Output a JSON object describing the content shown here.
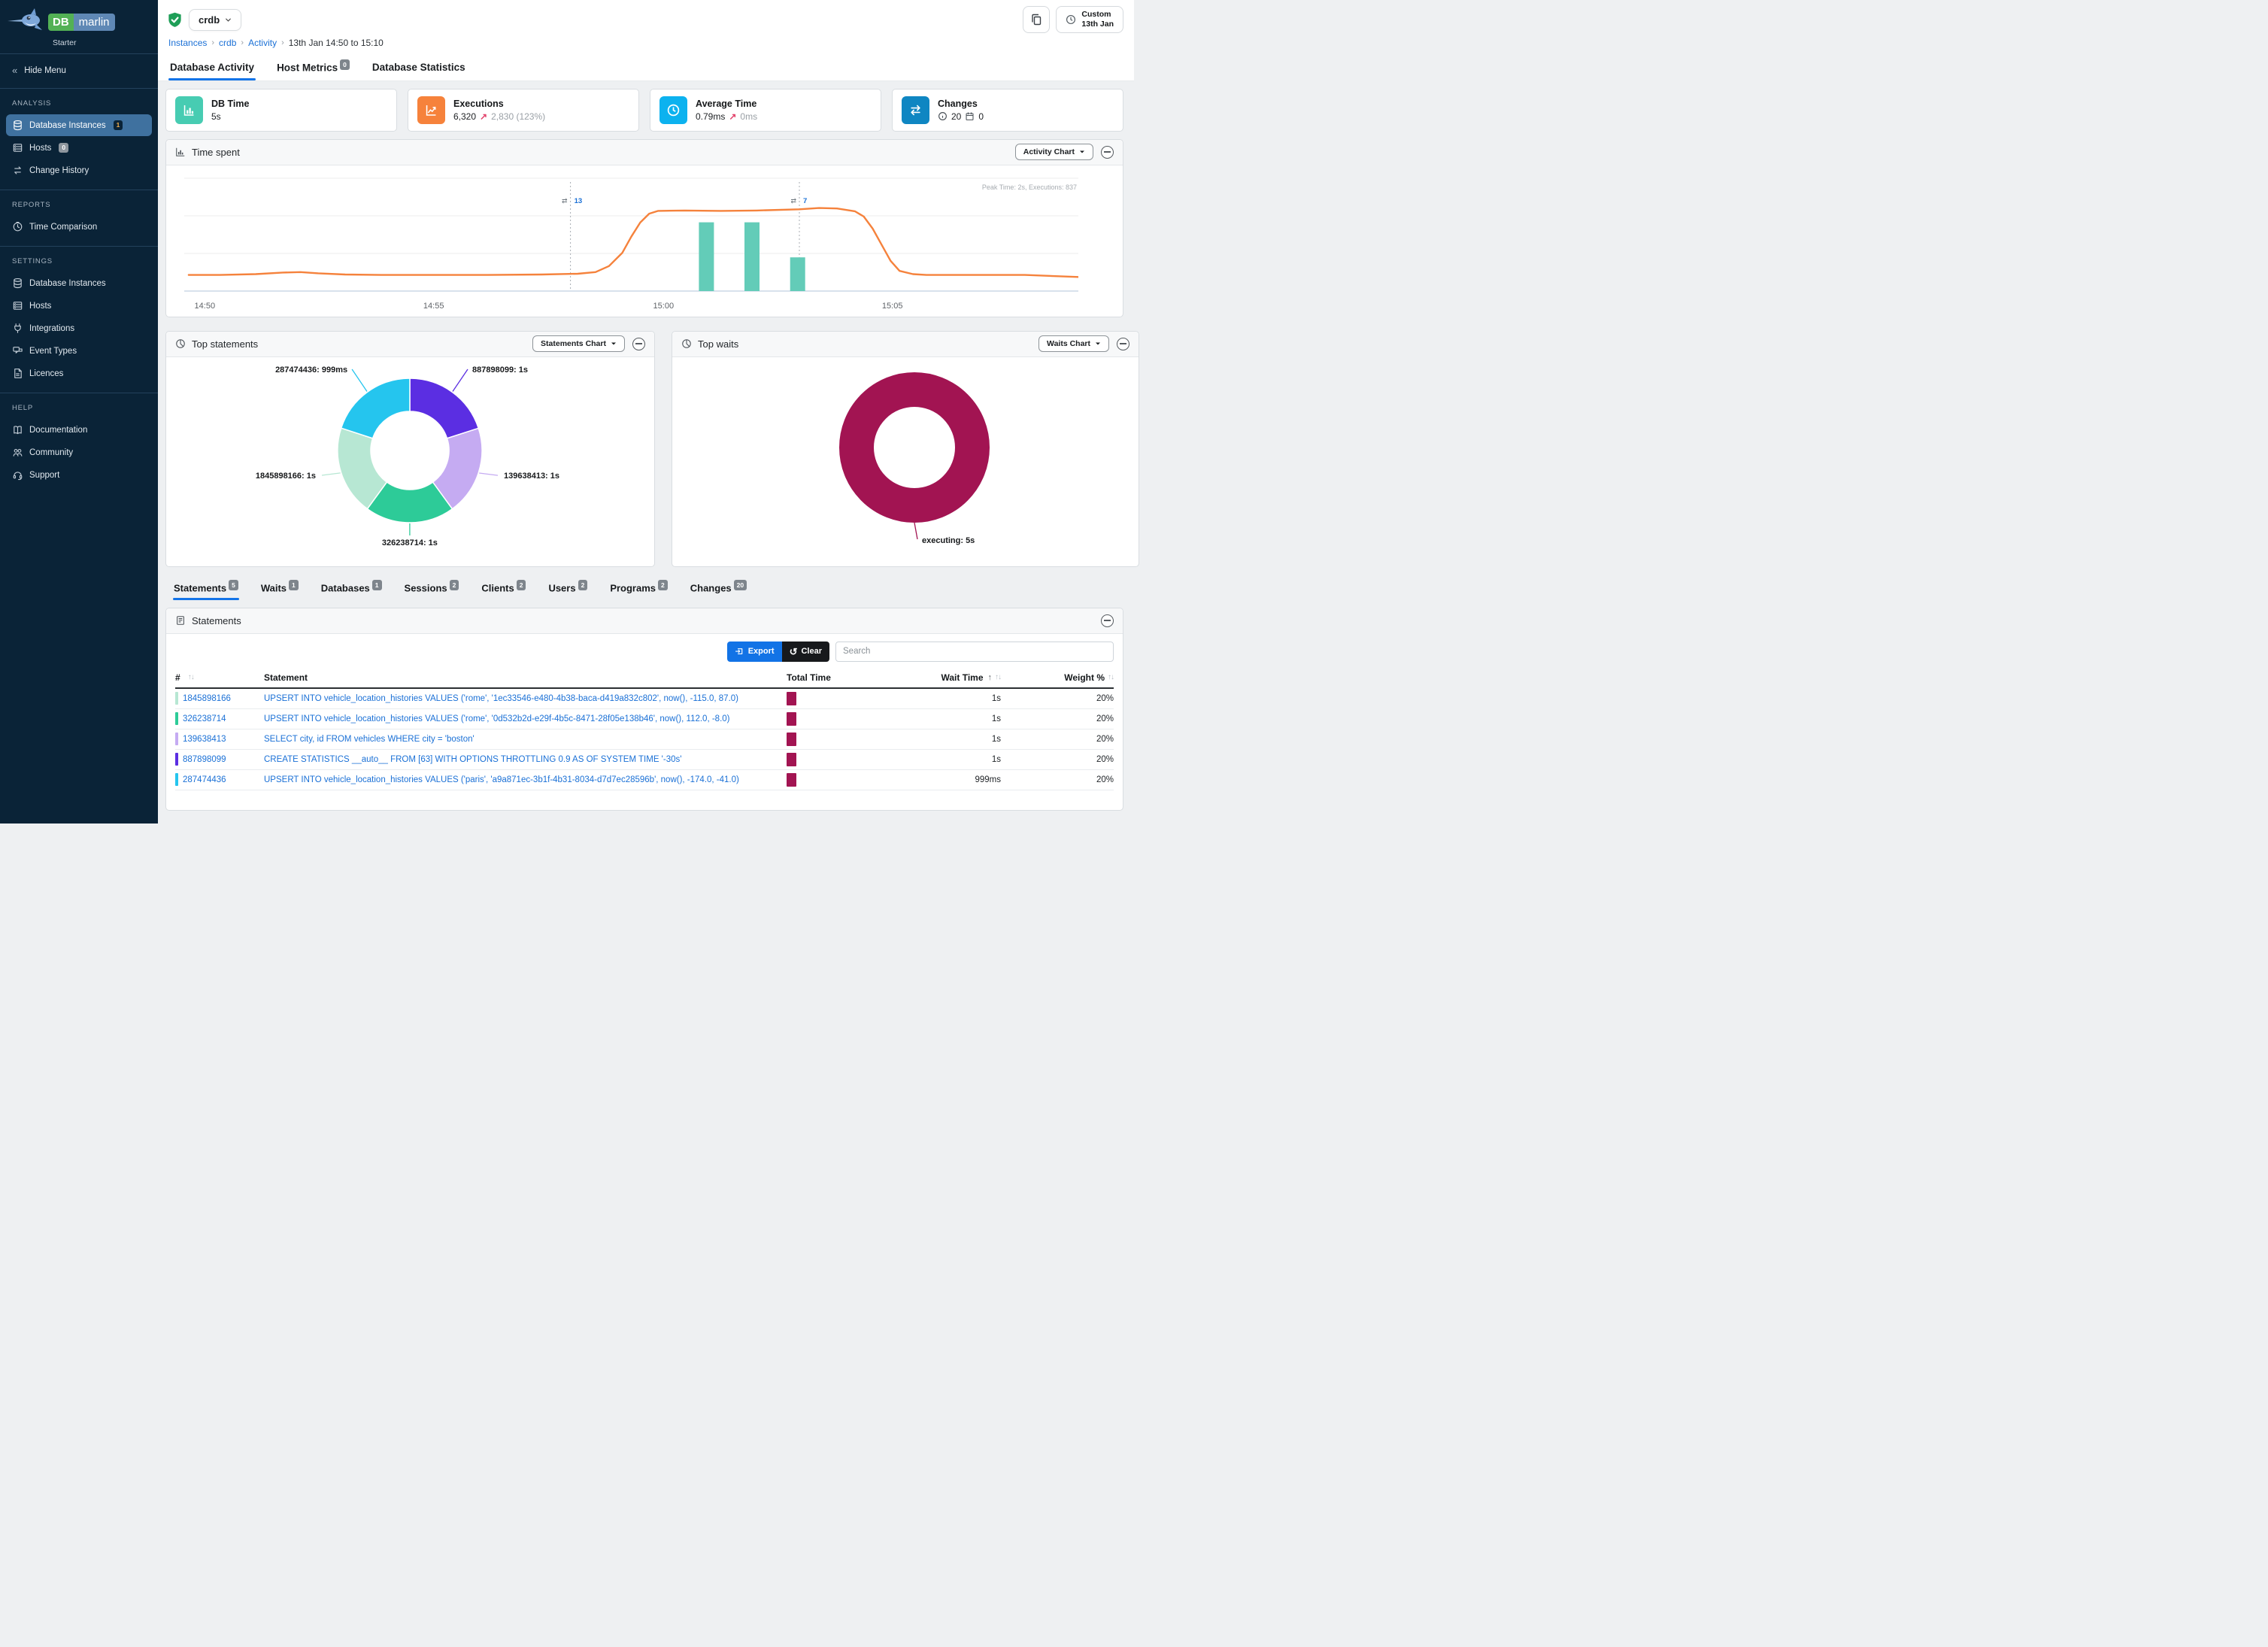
{
  "brand": {
    "db": "DB",
    "marlin": "marlin",
    "edition": "Starter"
  },
  "sidebar": {
    "hide_menu": "Hide Menu",
    "sections": [
      {
        "title": "ANALYSIS",
        "items": [
          {
            "label": "Database Instances",
            "icon": "database",
            "badge": "1",
            "badge_style": "dark",
            "active": true
          },
          {
            "label": "Hosts",
            "icon": "server",
            "badge": "0",
            "badge_style": "gray"
          },
          {
            "label": "Change History",
            "icon": "swap"
          }
        ]
      },
      {
        "title": "REPORTS",
        "items": [
          {
            "label": "Time Comparison",
            "icon": "clock"
          }
        ]
      },
      {
        "title": "SETTINGS",
        "items": [
          {
            "label": "Database Instances",
            "icon": "database"
          },
          {
            "label": "Hosts",
            "icon": "server"
          },
          {
            "label": "Integrations",
            "icon": "plug"
          },
          {
            "label": "Event Types",
            "icon": "events"
          },
          {
            "label": "Licences",
            "icon": "licence"
          }
        ]
      },
      {
        "title": "HELP",
        "items": [
          {
            "label": "Documentation",
            "icon": "book"
          },
          {
            "label": "Community",
            "icon": "people"
          },
          {
            "label": "Support",
            "icon": "support"
          }
        ]
      }
    ]
  },
  "header": {
    "instance_name": "crdb",
    "breadcrumb": [
      "Instances",
      "crdb",
      "Activity",
      "13th Jan 14:50 to 15:10"
    ],
    "time_range_button": {
      "line1": "Custom",
      "line2": "13th Jan"
    }
  },
  "page_tabs": [
    {
      "label": "Database Activity",
      "active": true
    },
    {
      "label": "Host Metrics",
      "badge": "0"
    },
    {
      "label": "Database Statistics"
    }
  ],
  "metric_cards": {
    "db_time": {
      "title": "DB Time",
      "value": "5s",
      "accent": "#47ccb2"
    },
    "executions": {
      "title": "Executions",
      "value": "6,320",
      "delta": "2,830 (123%)",
      "accent": "#f6823b"
    },
    "average_time": {
      "title": "Average Time",
      "value": "0.79ms",
      "delta": "0ms",
      "accent": "#0cb2ef"
    },
    "changes": {
      "title": "Changes",
      "info_count": "20",
      "event_count": "0",
      "accent": "#0f86c2"
    }
  },
  "panels": {
    "time_spent": {
      "title": "Time spent",
      "selector": "Activity Chart",
      "peak_note": "Peak Time: 2s, Executions: 837"
    },
    "top_statements": {
      "title": "Top statements",
      "selector": "Statements Chart"
    },
    "top_waits": {
      "title": "Top waits",
      "selector": "Waits Chart"
    }
  },
  "chart_data": [
    {
      "type": "line+bar",
      "title": "Time spent",
      "x_ticks": [
        {
          "label": "14:50",
          "pos": 0.023
        },
        {
          "label": "14:55",
          "pos": 0.279
        },
        {
          "label": "15:00",
          "pos": 0.536
        },
        {
          "label": "15:05",
          "pos": 0.792
        }
      ],
      "y_max_seconds": 2.8,
      "grid": true,
      "legend": "none",
      "line_series": {
        "name": "DB Time (s)",
        "color": "#f5823c",
        "points": [
          [
            0.005,
            0.4
          ],
          [
            0.04,
            0.4
          ],
          [
            0.08,
            0.42
          ],
          [
            0.11,
            0.46
          ],
          [
            0.13,
            0.47
          ],
          [
            0.15,
            0.44
          ],
          [
            0.18,
            0.41
          ],
          [
            0.22,
            0.4
          ],
          [
            0.28,
            0.4
          ],
          [
            0.34,
            0.4
          ],
          [
            0.4,
            0.41
          ],
          [
            0.44,
            0.43
          ],
          [
            0.46,
            0.47
          ],
          [
            0.475,
            0.62
          ],
          [
            0.49,
            0.95
          ],
          [
            0.5,
            1.35
          ],
          [
            0.51,
            1.7
          ],
          [
            0.52,
            1.92
          ],
          [
            0.53,
            1.99
          ],
          [
            0.56,
            2.0
          ],
          [
            0.6,
            1.99
          ],
          [
            0.64,
            2.0
          ],
          [
            0.688,
            2.03
          ],
          [
            0.71,
            2.06
          ],
          [
            0.73,
            2.05
          ],
          [
            0.75,
            1.98
          ],
          [
            0.76,
            1.85
          ],
          [
            0.77,
            1.55
          ],
          [
            0.78,
            1.15
          ],
          [
            0.79,
            0.75
          ],
          [
            0.8,
            0.5
          ],
          [
            0.815,
            0.42
          ],
          [
            0.83,
            0.4
          ],
          [
            0.88,
            0.4
          ],
          [
            0.94,
            0.4
          ],
          [
            1.0,
            0.35
          ]
        ]
      },
      "bar_series": {
        "name": "Executions",
        "color": "#63ccb8",
        "max_value": 837,
        "bars": [
          {
            "pos": 0.584,
            "value": 510
          },
          {
            "pos": 0.635,
            "value": 510
          },
          {
            "pos": 0.686,
            "value": 250
          }
        ]
      },
      "change_markers": [
        {
          "pos": 0.432,
          "count": "13"
        },
        {
          "pos": 0.688,
          "count": "7"
        }
      ]
    },
    {
      "type": "pie",
      "title": "Top statements",
      "legend_position": "labels",
      "segments": [
        {
          "id": "887898099",
          "time_label": "1s",
          "seconds": 1.0,
          "color": "#5b2ee2"
        },
        {
          "id": "139638413",
          "time_label": "1s",
          "seconds": 1.0,
          "color": "#c5abf2"
        },
        {
          "id": "326238714",
          "time_label": "1s",
          "seconds": 1.0,
          "color": "#2dcb98"
        },
        {
          "id": "1845898166",
          "time_label": "1s",
          "seconds": 1.0,
          "color": "#b7e7d3"
        },
        {
          "id": "287474436",
          "time_label": "999ms",
          "seconds": 0.999,
          "color": "#25c5ee"
        }
      ]
    },
    {
      "type": "pie",
      "title": "Top waits",
      "legend_position": "labels",
      "segments": [
        {
          "id": "executing",
          "time_label": "5s",
          "seconds": 5.0,
          "color": "#a21452"
        }
      ]
    }
  ],
  "detail_tabs": [
    {
      "label": "Statements",
      "badge": "5",
      "active": true
    },
    {
      "label": "Waits",
      "badge": "1"
    },
    {
      "label": "Databases",
      "badge": "1"
    },
    {
      "label": "Sessions",
      "badge": "2"
    },
    {
      "label": "Clients",
      "badge": "2"
    },
    {
      "label": "Users",
      "badge": "2"
    },
    {
      "label": "Programs",
      "badge": "2"
    },
    {
      "label": "Changes",
      "badge": "20"
    }
  ],
  "statements_panel": {
    "title": "Statements",
    "export_label": "Export",
    "clear_label": "Clear",
    "search_placeholder": "Search",
    "columns": [
      "#",
      "Statement",
      "Total Time",
      "Wait Time",
      "Weight %"
    ],
    "rows": [
      {
        "id": "1845898166",
        "color": "#b7e7d3",
        "statement": "UPSERT INTO vehicle_location_histories VALUES ('rome', '1ec33546-e480-4b38-baca-d419a832c802', now(), -115.0, 87.0)",
        "total_time_bar": 1.0,
        "wait_time": "1s",
        "weight": "20%"
      },
      {
        "id": "326238714",
        "color": "#2dcb98",
        "statement": "UPSERT INTO vehicle_location_histories VALUES ('rome', '0d532b2d-e29f-4b5c-8471-28f05e138b46', now(), 112.0, -8.0)",
        "total_time_bar": 1.0,
        "wait_time": "1s",
        "weight": "20%"
      },
      {
        "id": "139638413",
        "color": "#c5abf2",
        "statement": "SELECT city, id FROM vehicles WHERE city = 'boston'",
        "total_time_bar": 1.0,
        "wait_time": "1s",
        "weight": "20%"
      },
      {
        "id": "887898099",
        "color": "#5b2ee2",
        "statement": "CREATE STATISTICS __auto__ FROM [63] WITH OPTIONS THROTTLING 0.9 AS OF SYSTEM TIME '-30s'",
        "total_time_bar": 1.0,
        "wait_time": "1s",
        "weight": "20%"
      },
      {
        "id": "287474436",
        "color": "#25c5ee",
        "statement": "UPSERT INTO vehicle_location_histories VALUES ('paris', 'a9a871ec-3b1f-4b31-8034-d7d7ec28596b', now(), -174.0, -41.0)",
        "total_time_bar": 0.999,
        "wait_time": "999ms",
        "weight": "20%"
      }
    ]
  }
}
